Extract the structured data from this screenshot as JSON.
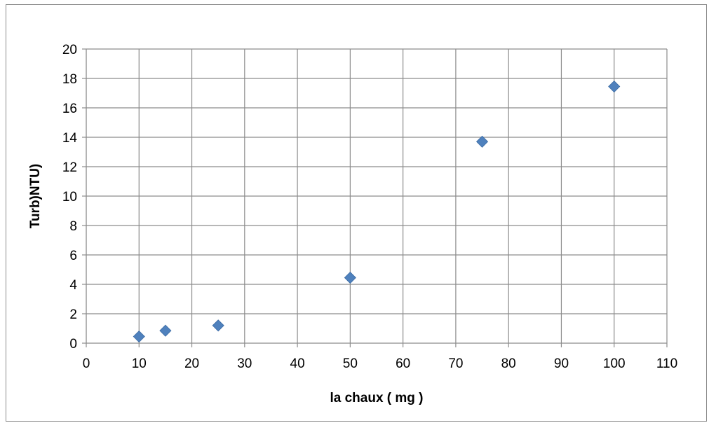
{
  "chart_data": {
    "type": "scatter",
    "title": "",
    "xlabel": "la chaux ( mg )",
    "ylabel": "Turb)NTU)",
    "xlim": [
      0,
      110
    ],
    "ylim": [
      0,
      20
    ],
    "x_ticks": [
      0,
      10,
      20,
      30,
      40,
      50,
      60,
      70,
      80,
      90,
      100,
      110
    ],
    "y_ticks": [
      0,
      2,
      4,
      6,
      8,
      10,
      12,
      14,
      16,
      18,
      20
    ],
    "grid": true,
    "legend": "none",
    "marker": "diamond",
    "series": [
      {
        "x": [
          10,
          15,
          25,
          50,
          75,
          100
        ],
        "y": [
          0.45,
          0.85,
          1.2,
          4.45,
          13.7,
          17.45
        ]
      }
    ],
    "colors": {
      "marker": "#4f81bd",
      "grid": "#8c8c8c",
      "axis": "#8c8c8c",
      "frame": "#8c8c8c"
    }
  }
}
